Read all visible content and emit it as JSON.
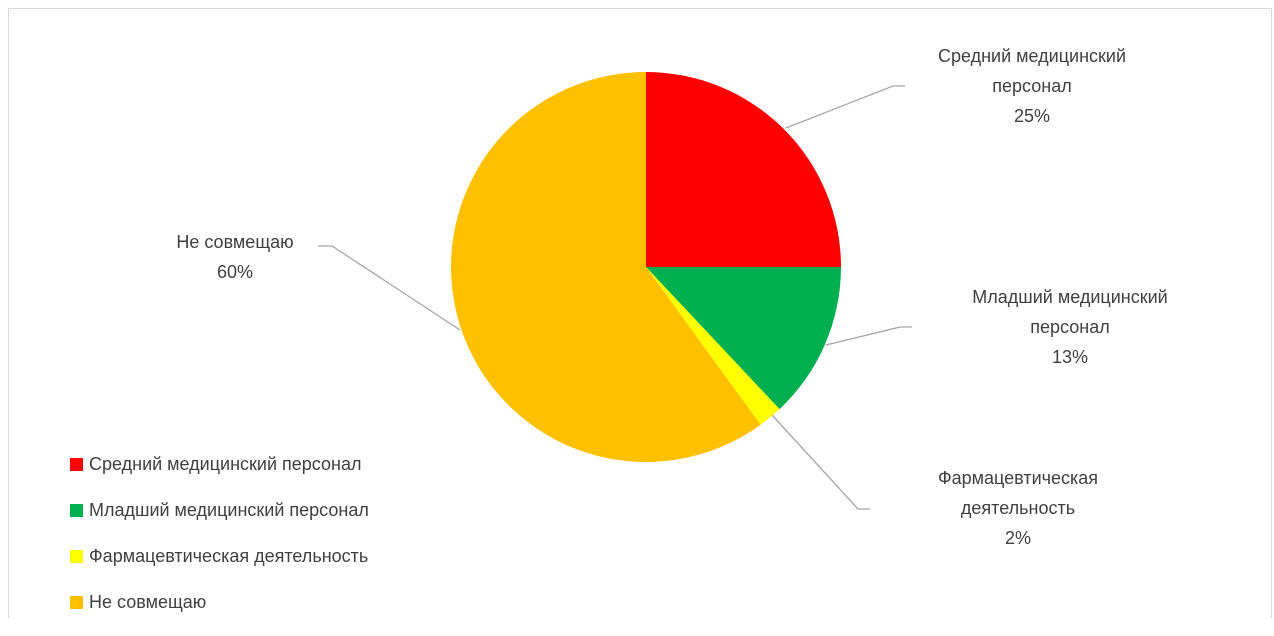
{
  "chart_data": {
    "type": "pie",
    "categories": [
      "Средний медицинский персонал",
      "Младший медицинский персонал",
      "Фармацевтическая деятельность",
      "Не совмещаю"
    ],
    "values": [
      25,
      13,
      2,
      60
    ],
    "unit": "%",
    "colors": [
      "#ff0000",
      "#00b050",
      "#ffff00",
      "#ffc000"
    ],
    "data_labels": [
      {
        "lines": [
          "Средний медицинский",
          "персонал",
          "25%"
        ]
      },
      {
        "lines": [
          "Младший медицинский",
          "персонал",
          "13%"
        ]
      },
      {
        "lines": [
          "Фармацевтическая",
          "деятельность",
          "2%"
        ]
      },
      {
        "lines": [
          "Не совмещаю",
          "60%"
        ]
      }
    ],
    "legend_position": "bottom-left",
    "title": ""
  }
}
